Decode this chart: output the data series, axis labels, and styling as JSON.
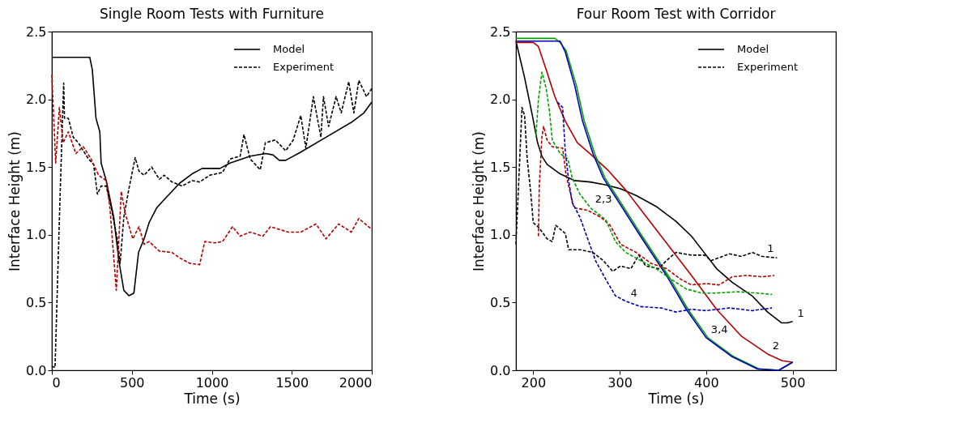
{
  "chart_data": [
    {
      "type": "line",
      "title": "Single Room Tests with Furniture",
      "xlabel": "Time (s)",
      "ylabel": "Interface Height (m)",
      "xlim": [
        0,
        2000
      ],
      "xticks": [
        0,
        500,
        1000,
        1500,
        2000
      ],
      "ylim": [
        0,
        2.5
      ],
      "yticks": [
        {
          "value": 0,
          "label": "0.0"
        },
        0.5,
        {
          "value": 1,
          "label": "1.0"
        },
        1.5,
        {
          "value": 2,
          "label": "2.0"
        },
        2.5
      ],
      "grid": false,
      "legend": "top right",
      "series": [
        {
          "name": "Model",
          "color": "#000000",
          "line_style": "solid",
          "x": [
            0,
            237,
            253,
            276,
            300,
            308,
            340,
            387,
            419,
            450,
            482,
            513,
            542,
            577,
            608,
            656,
            703,
            798,
            877,
            940,
            1051,
            1114,
            1240,
            1335,
            1382,
            1422,
            1462,
            1556,
            1714,
            1872,
            1951,
            2000
          ],
          "values": [
            2.31,
            2.31,
            2.22,
            1.86,
            1.76,
            1.53,
            1.4,
            1.13,
            0.81,
            0.59,
            0.55,
            0.57,
            0.87,
            0.97,
            1.09,
            1.2,
            1.26,
            1.38,
            1.45,
            1.49,
            1.49,
            1.53,
            1.58,
            1.6,
            1.59,
            1.55,
            1.55,
            1.61,
            1.72,
            1.83,
            1.9,
            1.98
          ]
        },
        {
          "name": "Experiment",
          "color": "#000000",
          "line_style": "dashed",
          "x": [
            0,
            20,
            50,
            74,
            79,
            103,
            134,
            166,
            197,
            229,
            261,
            285,
            308,
            340,
            371,
            411,
            427,
            450,
            482,
            521,
            545,
            577,
            624,
            672,
            703,
            751,
            814,
            877,
            924,
            988,
            1067,
            1114,
            1177,
            1201,
            1240,
            1303,
            1335,
            1398,
            1462,
            1509,
            1556,
            1588,
            1635,
            1682,
            1698,
            1730,
            1777,
            1809,
            1856,
            1888,
            1919,
            1967,
            2000
          ],
          "values": [
            0.03,
            0.02,
            1.23,
            2.12,
            1.86,
            1.86,
            1.72,
            1.68,
            1.62,
            1.56,
            1.52,
            1.3,
            1.36,
            1.36,
            1.2,
            0.96,
            0.79,
            1.13,
            1.34,
            1.57,
            1.47,
            1.44,
            1.5,
            1.41,
            1.44,
            1.39,
            1.36,
            1.4,
            1.39,
            1.44,
            1.46,
            1.56,
            1.58,
            1.74,
            1.56,
            1.48,
            1.68,
            1.7,
            1.62,
            1.7,
            1.88,
            1.64,
            2.02,
            1.72,
            2.02,
            1.8,
            2.02,
            1.9,
            2.13,
            1.9,
            2.14,
            2.02,
            2.08
          ]
        },
        {
          "color": "#b00000",
          "line_style": "dashed",
          "x": [
            0,
            24,
            47,
            71,
            103,
            150,
            197,
            245,
            292,
            340,
            363,
            403,
            434,
            458,
            506,
            545,
            577,
            608,
            672,
            751,
            798,
            861,
            924,
            956,
            1019,
            1067,
            1130,
            1177,
            1240,
            1319,
            1367,
            1477,
            1556,
            1651,
            1714,
            1793,
            1872,
            1919,
            2000
          ],
          "values": [
            2.18,
            1.53,
            1.94,
            1.68,
            1.76,
            1.6,
            1.65,
            1.56,
            1.44,
            1.4,
            1.2,
            0.59,
            1.32,
            1.16,
            0.97,
            1.06,
            0.93,
            0.95,
            0.88,
            0.87,
            0.83,
            0.79,
            0.78,
            0.95,
            0.94,
            0.95,
            1.06,
            0.99,
            1.02,
            0.99,
            1.06,
            1.02,
            1.02,
            1.08,
            0.97,
            1.08,
            1.02,
            1.12,
            1.04
          ]
        }
      ]
    },
    {
      "type": "line",
      "title": "Four Room Test with Corridor",
      "xlabel": "Time (s)",
      "ylabel": "Interface Height (m)",
      "xlim": [
        180,
        550
      ],
      "xticks": [
        200,
        300,
        400,
        500
      ],
      "ylim": [
        0,
        2.5
      ],
      "yticks": [
        {
          "value": 0,
          "label": "0.0"
        },
        0.5,
        {
          "value": 1,
          "label": "1.0"
        },
        1.5,
        {
          "value": 2,
          "label": "2.0"
        },
        2.5
      ],
      "grid": false,
      "legend": "top right",
      "annotations": [
        {
          "text": "1",
          "x": 465,
          "y": 0.84
        },
        {
          "text": "1",
          "x": 500,
          "y": 0.36
        },
        {
          "text": "2",
          "x": 471,
          "y": 0.12
        },
        {
          "text": "2,3",
          "x": 266,
          "y": 1.2
        },
        {
          "text": "3,4",
          "x": 400,
          "y": 0.24
        },
        {
          "text": "4",
          "x": 307,
          "y": 0.51
        }
      ],
      "series": [
        {
          "name": "Model",
          "color": "#000000",
          "line_style": "solid",
          "x": [
            180,
            190,
            199,
            205,
            210,
            216,
            231,
            248,
            266,
            283,
            301,
            319,
            342,
            365,
            383,
            400,
            412,
            430,
            453,
            471,
            487,
            494,
            500
          ],
          "values": [
            2.43,
            2.16,
            1.88,
            1.68,
            1.58,
            1.52,
            1.45,
            1.4,
            1.39,
            1.37,
            1.34,
            1.29,
            1.21,
            1.1,
            0.99,
            0.85,
            0.75,
            0.65,
            0.55,
            0.43,
            0.35,
            0.35,
            0.36
          ]
        },
        {
          "color": "#b00000",
          "line_style": "solid",
          "x": [
            180,
            200,
            206,
            216,
            225,
            237,
            251,
            269,
            286,
            307,
            330,
            354,
            383,
            412,
            441,
            471,
            488,
            500
          ],
          "values": [
            2.42,
            2.42,
            2.39,
            2.2,
            2.02,
            1.84,
            1.68,
            1.58,
            1.48,
            1.33,
            1.14,
            0.94,
            0.7,
            0.45,
            0.25,
            0.12,
            0.07,
            0.06
          ]
        },
        {
          "color": "#00a000",
          "line_style": "solid",
          "x": [
            180,
            225,
            231,
            238,
            250,
            259,
            271,
            283,
            297,
            326,
            356,
            379,
            402,
            432,
            461,
            484,
            500
          ],
          "values": [
            2.45,
            2.45,
            2.42,
            2.36,
            2.1,
            1.84,
            1.6,
            1.42,
            1.28,
            0.99,
            0.7,
            0.45,
            0.24,
            0.1,
            0.01,
            0.0,
            0.06
          ]
        },
        {
          "color": "#0000b0",
          "line_style": "solid",
          "x": [
            180,
            231,
            237,
            248,
            257,
            269,
            281,
            295,
            324,
            354,
            377,
            400,
            430,
            459,
            484,
            500
          ],
          "values": [
            2.43,
            2.43,
            2.35,
            2.1,
            1.84,
            1.6,
            1.42,
            1.28,
            0.99,
            0.7,
            0.45,
            0.24,
            0.1,
            0.01,
            0.0,
            0.06
          ]
        },
        {
          "name": "Experiment",
          "color": "#000000",
          "line_style": "dashed",
          "x": [
            180,
            187,
            190,
            193,
            197,
            200,
            207,
            216,
            222,
            226,
            237,
            241,
            254,
            269,
            281,
            292,
            301,
            313,
            322,
            330,
            345,
            354,
            365,
            383,
            398,
            406,
            427,
            441,
            453,
            465,
            482
          ],
          "values": [
            0.93,
            1.94,
            1.88,
            1.56,
            1.32,
            1.09,
            1.05,
            0.97,
            0.95,
            1.07,
            1.01,
            0.89,
            0.89,
            0.87,
            0.81,
            0.73,
            0.77,
            0.75,
            0.85,
            0.77,
            0.75,
            0.81,
            0.87,
            0.85,
            0.85,
            0.81,
            0.86,
            0.84,
            0.87,
            0.84,
            0.83
          ]
        },
        {
          "color": "#b00000",
          "line_style": "dashed",
          "x": [
            206,
            207,
            210,
            212,
            216,
            222,
            234,
            238,
            247,
            263,
            278,
            289,
            301,
            319,
            336,
            354,
            371,
            383,
            400,
            415,
            430,
            447,
            465,
            479
          ],
          "values": [
            0.99,
            1.36,
            1.72,
            1.8,
            1.7,
            1.65,
            1.64,
            1.44,
            1.2,
            1.18,
            1.13,
            1.07,
            0.93,
            0.87,
            0.79,
            0.75,
            0.67,
            0.63,
            0.64,
            0.63,
            0.69,
            0.7,
            0.69,
            0.7
          ]
        },
        {
          "color": "#00a000",
          "line_style": "dashed",
          "x": [
            203,
            206,
            210,
            215,
            219,
            222,
            231,
            240,
            245,
            254,
            266,
            284,
            295,
            307,
            324,
            342,
            360,
            377,
            395,
            412,
            436,
            459,
            476
          ],
          "values": [
            1.72,
            2.0,
            2.2,
            2.08,
            1.9,
            1.7,
            1.6,
            1.56,
            1.42,
            1.3,
            1.2,
            1.11,
            0.95,
            0.87,
            0.81,
            0.75,
            0.67,
            0.6,
            0.57,
            0.57,
            0.58,
            0.57,
            0.56
          ]
        },
        {
          "color": "#0000b0",
          "line_style": "dashed",
          "x": [
            228,
            234,
            237,
            241,
            245,
            254,
            263,
            272,
            284,
            295,
            307,
            324,
            348,
            365,
            383,
            400,
            427,
            453,
            476
          ],
          "values": [
            1.98,
            1.94,
            1.62,
            1.4,
            1.24,
            1.13,
            0.97,
            0.81,
            0.67,
            0.55,
            0.51,
            0.47,
            0.46,
            0.43,
            0.45,
            0.44,
            0.46,
            0.44,
            0.46
          ]
        }
      ]
    }
  ]
}
